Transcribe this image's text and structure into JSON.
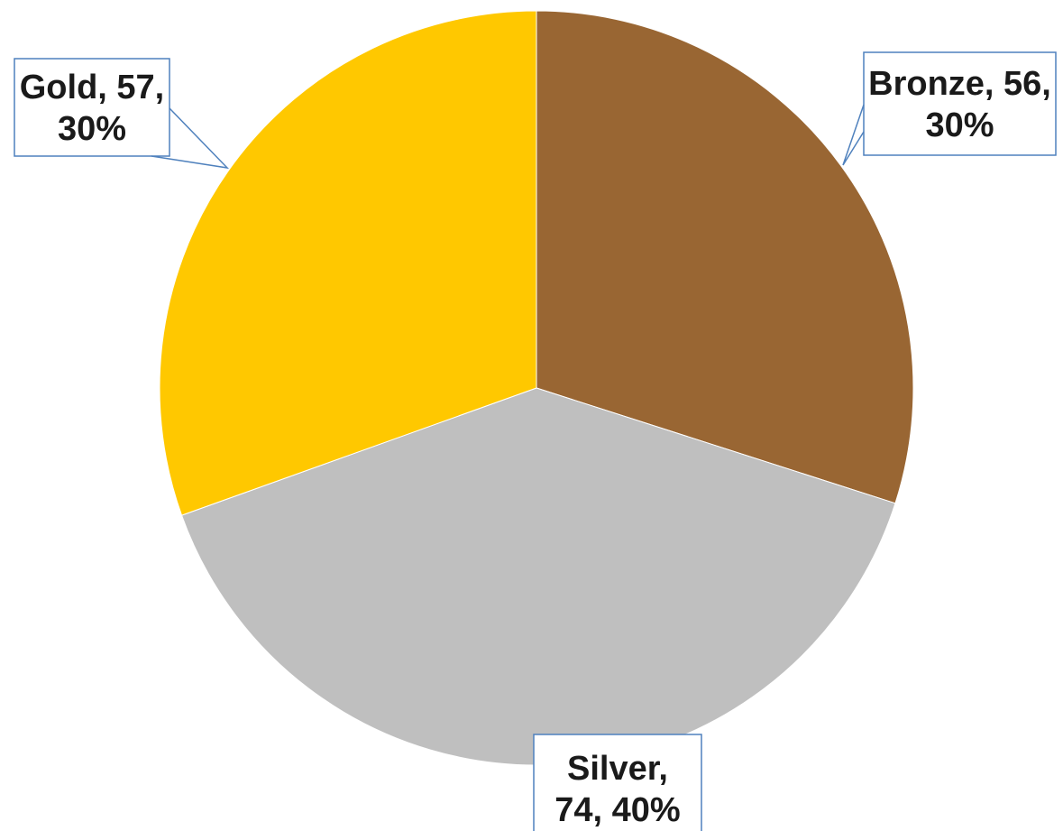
{
  "chart_data": {
    "type": "pie",
    "categories": [
      "Bronze",
      "Silver",
      "Gold"
    ],
    "values": [
      56,
      74,
      57
    ],
    "percents": [
      "30%",
      "40%",
      "30%"
    ],
    "colors": [
      "#996633",
      "#bfbfbf",
      "#ffc800"
    ],
    "start_angle_deg": 0,
    "direction": "clockwise",
    "data_labels": [
      {
        "lines": [
          "Bronze, 56,",
          "30%"
        ]
      },
      {
        "lines": [
          "Silver,",
          "74, 40%"
        ]
      },
      {
        "lines": [
          "Gold, 57,",
          "30%"
        ]
      }
    ],
    "title": "",
    "legend": "none"
  }
}
